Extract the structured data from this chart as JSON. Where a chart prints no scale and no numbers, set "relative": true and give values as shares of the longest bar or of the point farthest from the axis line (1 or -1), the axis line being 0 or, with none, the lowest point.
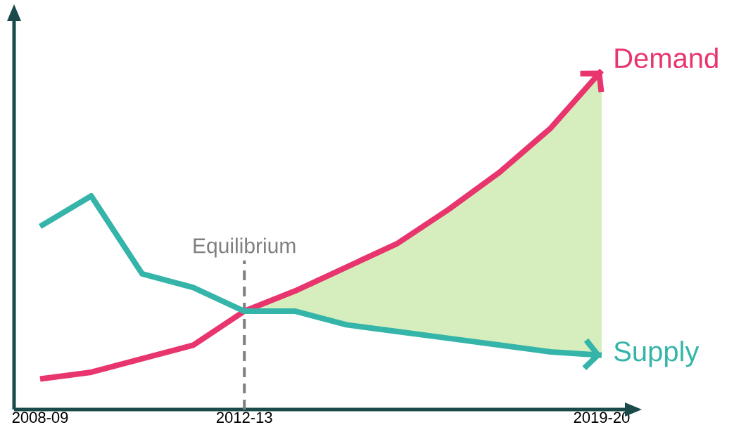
{
  "chart_data": {
    "type": "line",
    "relative": true,
    "legend": "right",
    "tick_labels": "x",
    "categories": [
      "2008-09",
      null,
      null,
      null,
      "2012-13",
      null,
      null,
      null,
      null,
      null,
      null,
      "2019-20"
    ],
    "series": [
      {
        "name": "Demand",
        "color": "#e8356d",
        "values": [
          0.09,
          0.11,
          0.15,
          0.19,
          0.29,
          0.35,
          0.42,
          0.49,
          0.59,
          0.7,
          0.83,
          1.0
        ],
        "lower": [
          null,
          null,
          null,
          null,
          0.29,
          0.29,
          0.25,
          0.23,
          0.21,
          0.19,
          0.17,
          0.16
        ],
        "upper": [
          null,
          null,
          null,
          null,
          0.29,
          0.35,
          0.42,
          0.49,
          0.59,
          0.7,
          0.83,
          1.0
        ]
      },
      {
        "name": "Supply",
        "color": "#35b5a9",
        "values": [
          0.54,
          0.63,
          0.4,
          0.36,
          0.29,
          0.29,
          0.25,
          0.23,
          0.21,
          0.19,
          0.17,
          0.16
        ]
      }
    ],
    "ref_lines": [
      {
        "axis": "x",
        "value": "2012-13",
        "label": "Equilibrium",
        "color": "#7f7f7f",
        "line_style": "dashed"
      }
    ]
  }
}
